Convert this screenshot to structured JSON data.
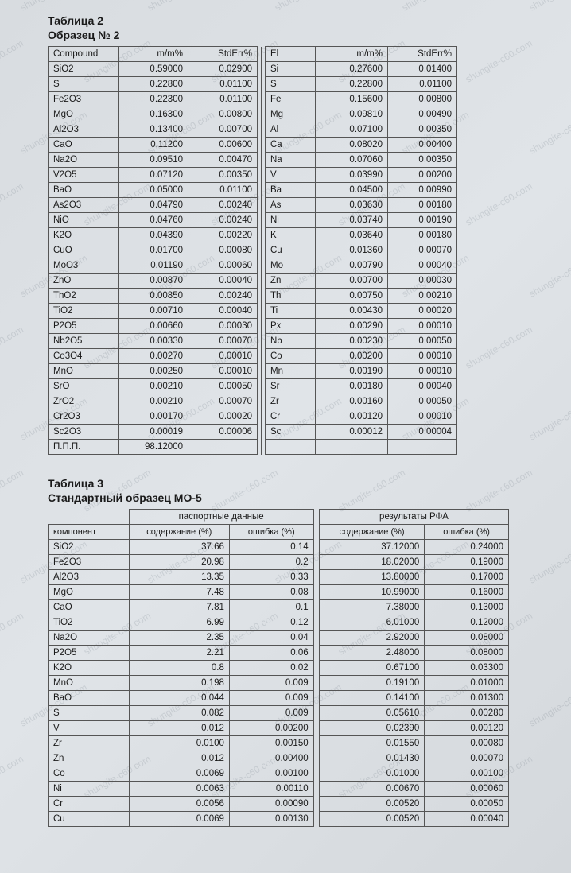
{
  "watermark_text": "shungite-c60.com",
  "table2": {
    "title": "Таблица 2",
    "subtitle": "Образец № 2",
    "headers": [
      "Compound",
      "m/m%",
      "StdErr%",
      "El",
      "m/m%",
      "StdErr%"
    ],
    "rows": [
      [
        "SiO2",
        "0.59000",
        "0.02900",
        "Si",
        "0.27600",
        "0.01400"
      ],
      [
        "S",
        "0.22800",
        "0.01100",
        "S",
        "0.22800",
        "0.01100"
      ],
      [
        "Fe2O3",
        "0.22300",
        "0.01100",
        "Fe",
        "0.15600",
        "0.00800"
      ],
      [
        "MgO",
        "0.16300",
        "0.00800",
        "Mg",
        "0.09810",
        "0.00490"
      ],
      [
        "Al2O3",
        "0.13400",
        "0.00700",
        "Al",
        "0.07100",
        "0.00350"
      ],
      [
        "CaO",
        "0.11200",
        "0.00600",
        "Ca",
        "0.08020",
        "0.00400"
      ],
      [
        "Na2O",
        "0.09510",
        "0.00470",
        "Na",
        "0.07060",
        "0.00350"
      ],
      [
        "V2O5",
        "0.07120",
        "0.00350",
        "V",
        "0.03990",
        "0.00200"
      ],
      [
        "BaO",
        "0.05000",
        "0.01100",
        "Ba",
        "0.04500",
        "0.00990"
      ],
      [
        "As2O3",
        "0.04790",
        "0.00240",
        "As",
        "0.03630",
        "0.00180"
      ],
      [
        "NiO",
        "0.04760",
        "0.00240",
        "Ni",
        "0.03740",
        "0.00190"
      ],
      [
        "K2O",
        "0.04390",
        "0.00220",
        "K",
        "0.03640",
        "0.00180"
      ],
      [
        "CuO",
        "0.01700",
        "0.00080",
        "Cu",
        "0.01360",
        "0.00070"
      ],
      [
        "MoO3",
        "0.01190",
        "0.00060",
        "Mo",
        "0.00790",
        "0.00040"
      ],
      [
        "ZnO",
        "0.00870",
        "0.00040",
        "Zn",
        "0.00700",
        "0.00030"
      ],
      [
        "ThO2",
        "0.00850",
        "0.00240",
        "Th",
        "0.00750",
        "0.00210"
      ],
      [
        "TiO2",
        "0.00710",
        "0.00040",
        "Ti",
        "0.00430",
        "0.00020"
      ],
      [
        "P2O5",
        "0.00660",
        "0.00030",
        "Px",
        "0.00290",
        "0.00010"
      ],
      [
        "Nb2O5",
        "0.00330",
        "0.00070",
        "Nb",
        "0.00230",
        "0.00050"
      ],
      [
        "Co3O4",
        "0.00270",
        "0.00010",
        "Co",
        "0.00200",
        "0.00010"
      ],
      [
        "MnO",
        "0.00250",
        "0.00010",
        "Mn",
        "0.00190",
        "0.00010"
      ],
      [
        "SrO",
        "0.00210",
        "0.00050",
        "Sr",
        "0.00180",
        "0.00040"
      ],
      [
        "ZrO2",
        "0.00210",
        "0.00070",
        "Zr",
        "0.00160",
        "0.00050"
      ],
      [
        "Cr2O3",
        "0.00170",
        "0.00020",
        "Cr",
        "0.00120",
        "0.00010"
      ],
      [
        "Sc2O3",
        "0.00019",
        "0.00006",
        "Sc",
        "0.00012",
        "0.00004"
      ],
      [
        "П.П.П.",
        "98.12000",
        "",
        "",
        "",
        ""
      ]
    ]
  },
  "table3": {
    "title": "Таблица 3",
    "subtitle": "Стандартный образец МО-5",
    "group_headers": [
      "паспортные данные",
      "результаты РФА"
    ],
    "col_headers": [
      "компонент",
      "содержание (%)",
      "ошибка (%)",
      "содержание (%)",
      "ошибка (%)"
    ],
    "rows": [
      [
        "SiO2",
        "37.66",
        "0.14",
        "37.12000",
        "0.24000"
      ],
      [
        "Fe2O3",
        "20.98",
        "0.2",
        "18.02000",
        "0.19000"
      ],
      [
        "Al2O3",
        "13.35",
        "0.33",
        "13.80000",
        "0.17000"
      ],
      [
        "MgO",
        "7.48",
        "0.08",
        "10.99000",
        "0.16000"
      ],
      [
        "CaO",
        "7.81",
        "0.1",
        "7.38000",
        "0.13000"
      ],
      [
        "TiO2",
        "6.99",
        "0.12",
        "6.01000",
        "0.12000"
      ],
      [
        "Na2O",
        "2.35",
        "0.04",
        "2.92000",
        "0.08000"
      ],
      [
        "P2O5",
        "2.21",
        "0.06",
        "2.48000",
        "0.08000"
      ],
      [
        "K2O",
        "0.8",
        "0.02",
        "0.67100",
        "0.03300"
      ],
      [
        "MnO",
        "0.198",
        "0.009",
        "0.19100",
        "0.01000"
      ],
      [
        "BaO",
        "0.044",
        "0.009",
        "0.14100",
        "0.01300"
      ],
      [
        "S",
        "0.082",
        "0.009",
        "0.05610",
        "0.00280"
      ],
      [
        "V",
        "0.012",
        "0.00200",
        "0.02390",
        "0.00120"
      ],
      [
        "Zr",
        "0.0100",
        "0.00150",
        "0.01550",
        "0.00080"
      ],
      [
        "Zn",
        "0.012",
        "0.00400",
        "0.01430",
        "0.00070"
      ],
      [
        "Co",
        "0.0069",
        "0.00100",
        "0.01000",
        "0.00100"
      ],
      [
        "Ni",
        "0.0063",
        "0.00110",
        "0.00670",
        "0.00060"
      ],
      [
        "Cr",
        "0.0056",
        "0.00090",
        "0.00520",
        "0.00050"
      ],
      [
        "Cu",
        "0.0069",
        "0.00130",
        "0.00520",
        "0.00040"
      ]
    ]
  },
  "style": {
    "border_color": "#555555",
    "text_color": "#1a1a1a",
    "font_size_body": 11.5,
    "font_size_title": 14
  }
}
